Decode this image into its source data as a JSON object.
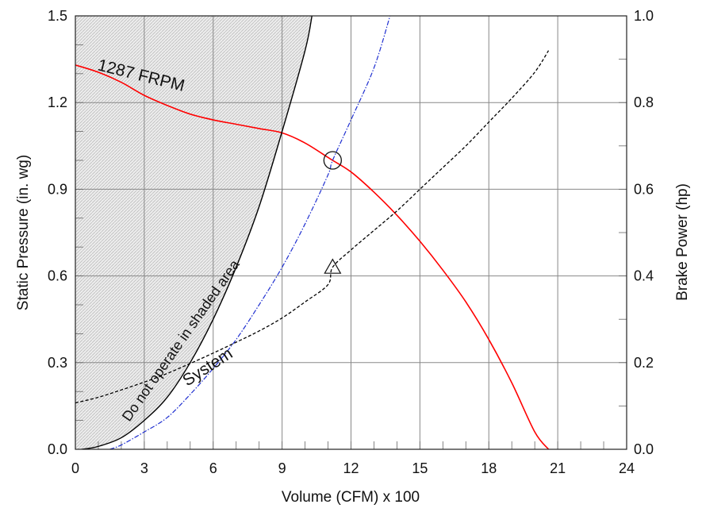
{
  "chart_data": {
    "type": "line",
    "title": "",
    "xlabel": "Volume (CFM) x 100",
    "ylabel": "Static Pressure (in. wg)",
    "y2label": "Brake Power (hp)",
    "xlim": [
      0,
      24
    ],
    "ylim": [
      0,
      1.5
    ],
    "y2lim": [
      0,
      1.0
    ],
    "x_ticks": [
      "0",
      "3",
      "6",
      "9",
      "12",
      "15",
      "18",
      "21",
      "24"
    ],
    "y_ticks": [
      "0.0",
      "0.3",
      "0.6",
      "0.9",
      "1.2",
      "1.5"
    ],
    "y2_ticks": [
      "0.0",
      "0.2",
      "0.4",
      "0.6",
      "0.8",
      "1.0"
    ],
    "grid": true,
    "colors": {
      "fan_curve": "#ff0000",
      "system_curve": "#1f2fd0",
      "power_curve": "#000000",
      "limit_curve": "#000000",
      "grid": "#888888",
      "shade": "#cccccc"
    },
    "series": [
      {
        "key": "fan",
        "name": "1287 FRPM",
        "axis": "left",
        "style": "solid",
        "x": [
          0,
          1,
          2,
          3,
          4,
          5,
          6,
          7,
          8,
          9,
          10,
          11,
          11.2,
          12,
          13,
          14,
          15,
          16,
          17,
          18,
          19,
          20,
          20.6
        ],
        "y": [
          1.33,
          1.305,
          1.27,
          1.225,
          1.19,
          1.16,
          1.14,
          1.125,
          1.11,
          1.095,
          1.06,
          1.01,
          1.0,
          0.96,
          0.89,
          0.81,
          0.72,
          0.62,
          0.51,
          0.38,
          0.23,
          0.06,
          0.0
        ]
      },
      {
        "key": "system",
        "name": "System",
        "axis": "left",
        "style": "dashdot",
        "x": [
          1.5,
          2,
          3,
          4,
          5,
          6,
          7,
          8,
          9,
          10,
          11,
          11.2,
          12,
          13,
          13.7
        ],
        "y": [
          0.0,
          0.015,
          0.06,
          0.11,
          0.19,
          0.28,
          0.38,
          0.5,
          0.63,
          0.78,
          0.95,
          1.0,
          1.14,
          1.32,
          1.5
        ]
      },
      {
        "key": "power",
        "name": "Brake Power",
        "axis": "right",
        "style": "dashed",
        "x": [
          0,
          1,
          2,
          3,
          4,
          5,
          6,
          7,
          8,
          9,
          10,
          11,
          11.2,
          12,
          13,
          14,
          15,
          16,
          17,
          18,
          19,
          20,
          20.6
        ],
        "y": [
          0.107,
          0.12,
          0.137,
          0.155,
          0.175,
          0.198,
          0.222,
          0.247,
          0.273,
          0.303,
          0.34,
          0.38,
          0.42,
          0.46,
          0.505,
          0.55,
          0.6,
          0.65,
          0.7,
          0.755,
          0.81,
          0.87,
          0.92
        ]
      },
      {
        "key": "limit",
        "name": "",
        "axis": "left",
        "style": "solid",
        "x": [
          0.3,
          1,
          2,
          3,
          4,
          5,
          6,
          7,
          8,
          9,
          10,
          10.3
        ],
        "y": [
          0.0,
          0.01,
          0.04,
          0.1,
          0.18,
          0.3,
          0.45,
          0.63,
          0.84,
          1.1,
          1.38,
          1.5
        ]
      }
    ],
    "markers": [
      {
        "shape": "circle",
        "x": 11.2,
        "y": 1.0,
        "axis": "left"
      },
      {
        "shape": "triangle",
        "x": 11.2,
        "y": 0.42,
        "axis": "right"
      }
    ],
    "annotations": {
      "fan_label": "1287 FRPM",
      "system_label": "System",
      "shaded_label": "Do not operate in shaded area"
    }
  }
}
